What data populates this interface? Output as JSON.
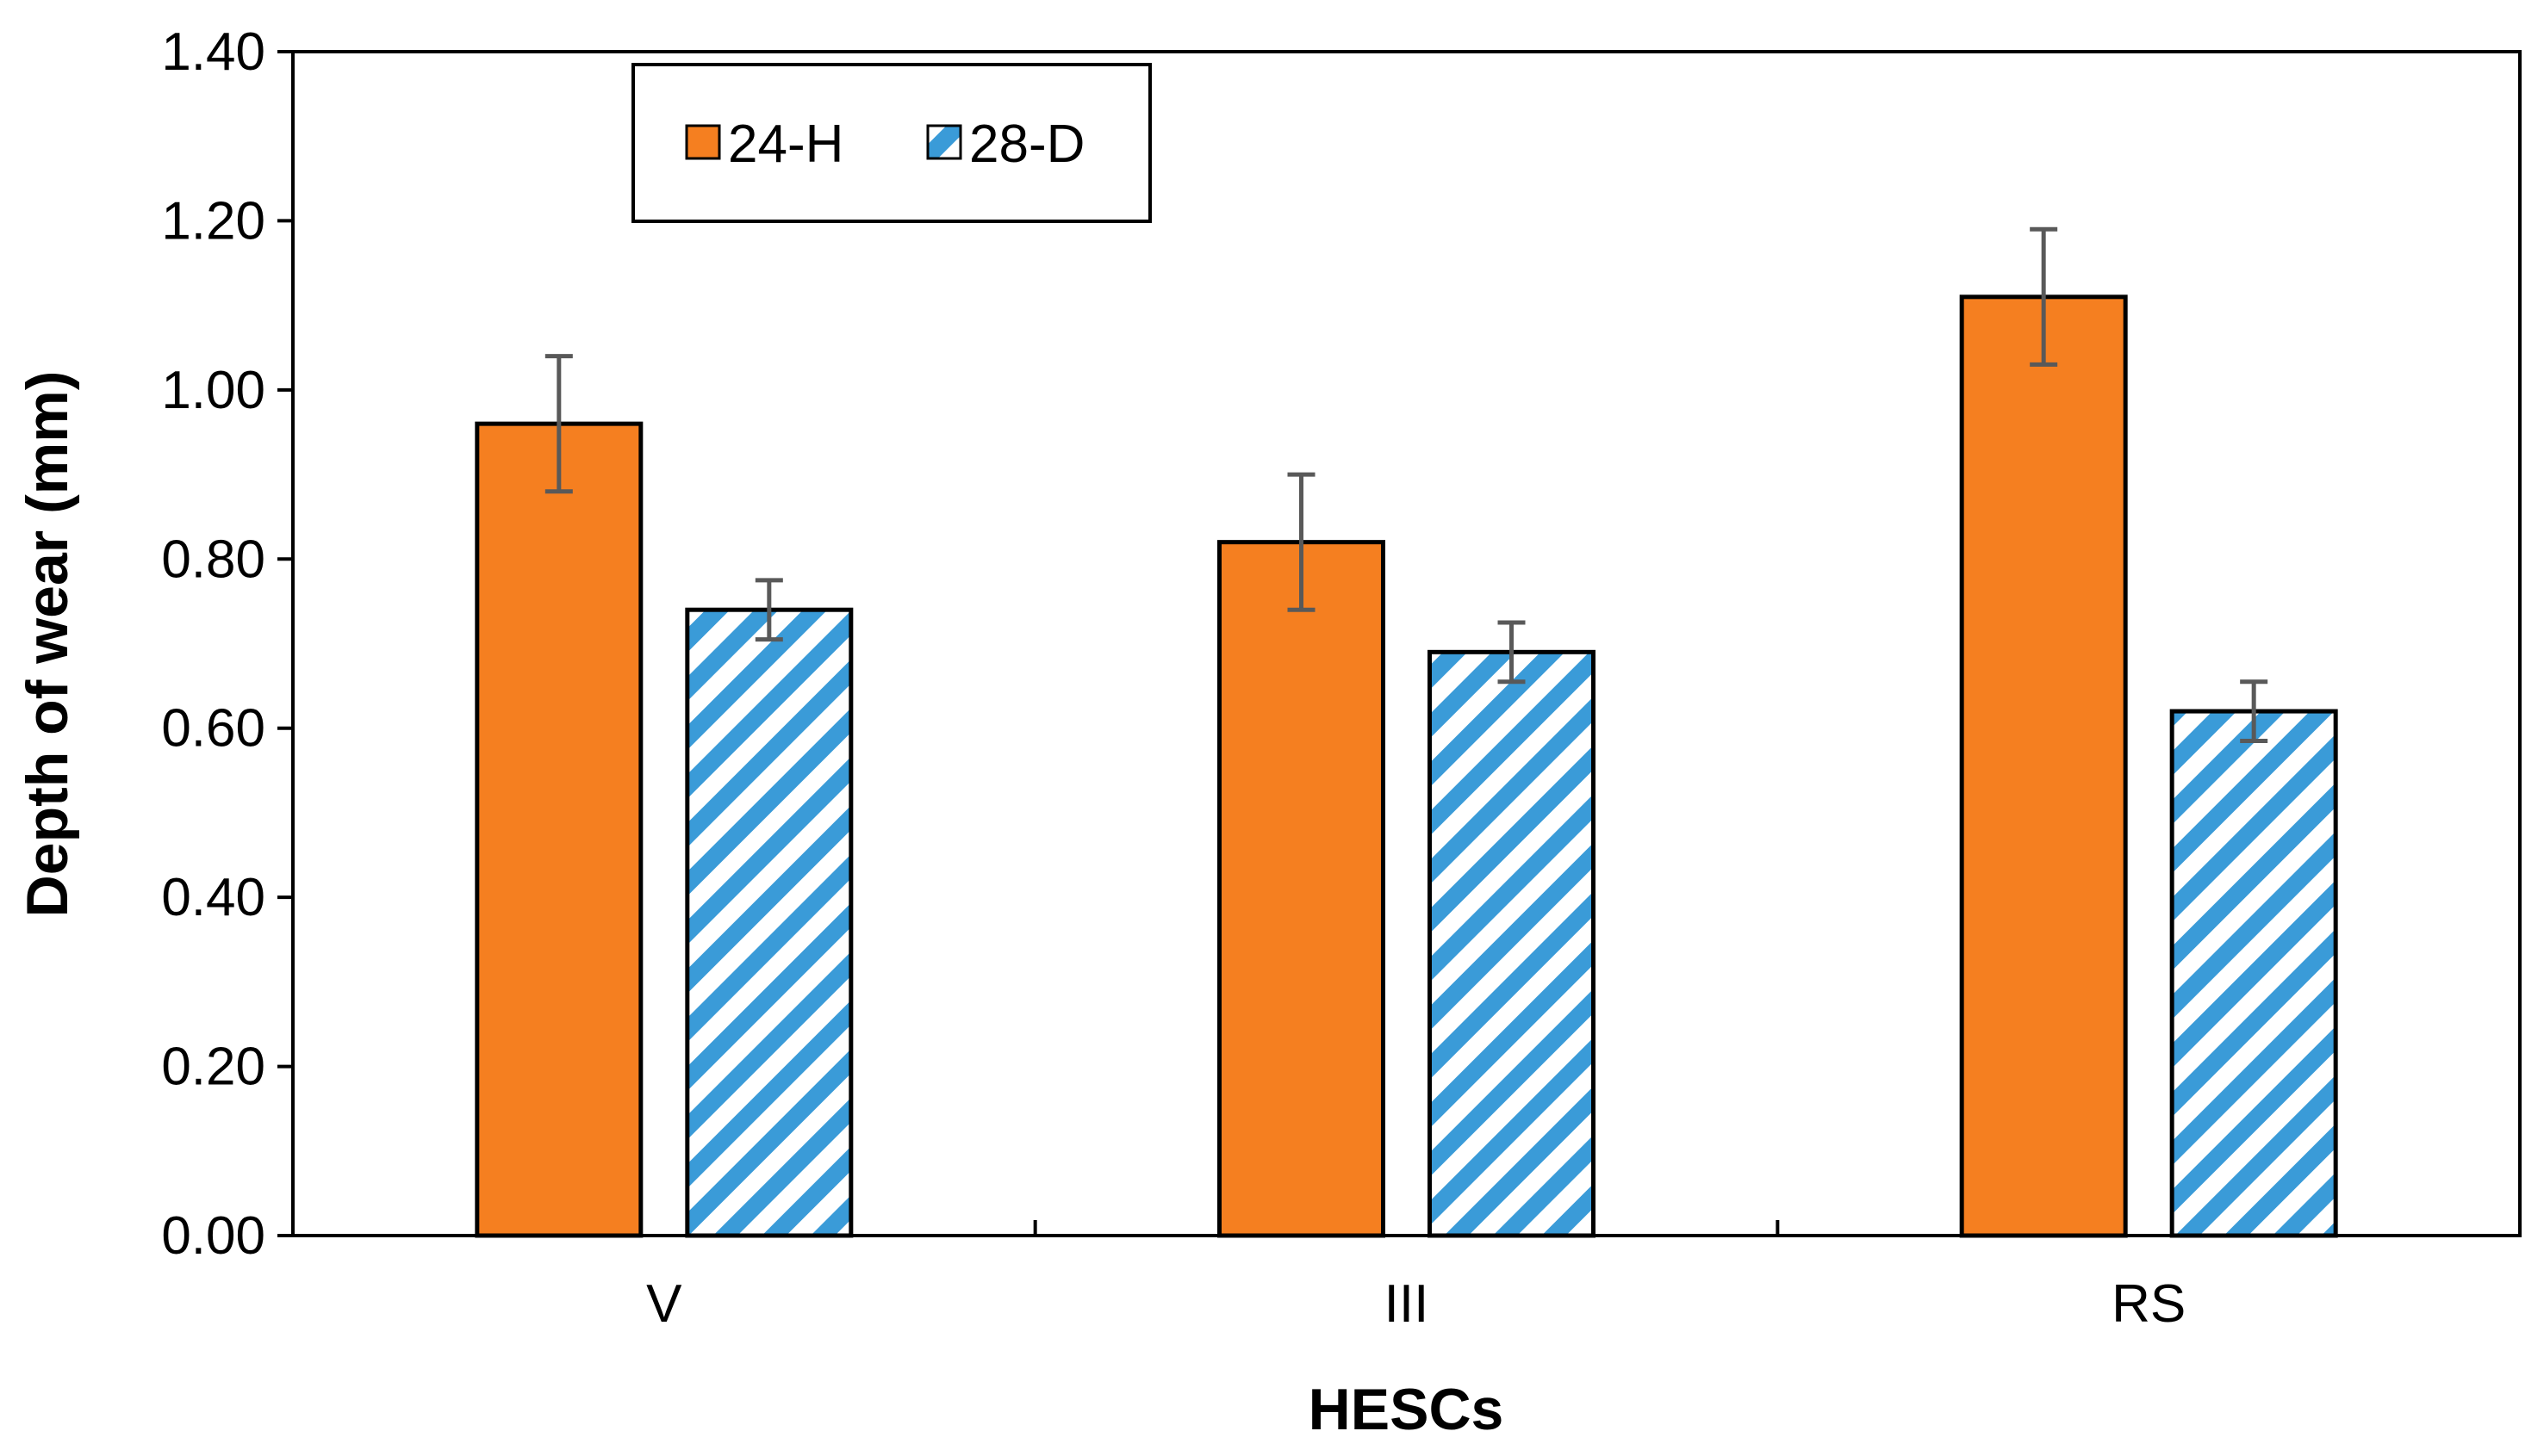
{
  "chart_data": {
    "type": "bar",
    "title": "",
    "xlabel": "HESCs",
    "ylabel": "Depth of wear (mm)",
    "ylim": [
      0,
      1.4
    ],
    "ytick_values": [
      0,
      0.2,
      0.4,
      0.6,
      0.8,
      1.0,
      1.2,
      1.4
    ],
    "ytick_labels": [
      "0.00",
      "0.20",
      "0.40",
      "0.60",
      "0.80",
      "1.00",
      "1.20",
      "1.40"
    ],
    "categories": [
      "V",
      "III",
      "RS"
    ],
    "grid": false,
    "legend_position": "top-left",
    "series": [
      {
        "name": "24-H",
        "values": [
          0.96,
          0.82,
          1.11
        ],
        "errors": [
          0.08,
          0.08,
          0.08
        ],
        "color": "#F57F20",
        "pattern": "solid"
      },
      {
        "name": "28-D",
        "values": [
          0.74,
          0.69,
          0.62
        ],
        "errors": [
          0.035,
          0.035,
          0.035
        ],
        "color": "#3A9BD8",
        "pattern": "diagonal-stripes"
      }
    ],
    "error_bar_color": "#595959"
  }
}
